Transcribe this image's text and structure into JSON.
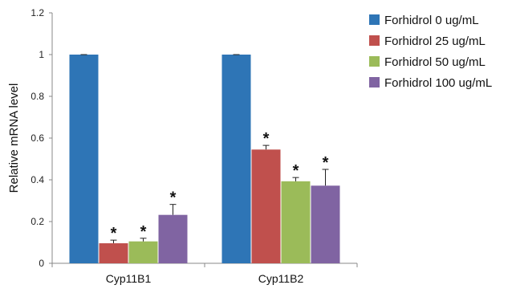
{
  "chart_data": {
    "type": "bar",
    "ylabel": "Relative mRNA level",
    "ylim": [
      0,
      1.2
    ],
    "y_ticks": [
      "0",
      "0.2",
      "0.4",
      "0.6",
      "0.8",
      "1",
      "1.2"
    ],
    "categories": [
      "Cyp11B1",
      "Cyp11B2"
    ],
    "legend_position": "right",
    "grid": false,
    "series": [
      {
        "name": "Forhidrol 0 ug/mL",
        "color": "#2e75b6",
        "values": [
          1.0,
          1.0
        ],
        "errors": [
          0.0,
          0.0
        ],
        "significant": [
          false,
          false
        ]
      },
      {
        "name": "Forhidrol 25 ug/mL",
        "color": "#c0504d",
        "values": [
          0.096,
          0.545
        ],
        "errors": [
          0.015,
          0.02
        ],
        "significant": [
          true,
          true
        ]
      },
      {
        "name": "Forhidrol 50 ug/mL",
        "color": "#9bbb59",
        "values": [
          0.105,
          0.393
        ],
        "errors": [
          0.015,
          0.018
        ],
        "significant": [
          true,
          true
        ]
      },
      {
        "name": "Forhidrol 100 ug/mL",
        "color": "#8064a2",
        "values": [
          0.232,
          0.372
        ],
        "errors": [
          0.05,
          0.078
        ],
        "significant": [
          true,
          true
        ]
      }
    ],
    "significance_marker": "*"
  }
}
